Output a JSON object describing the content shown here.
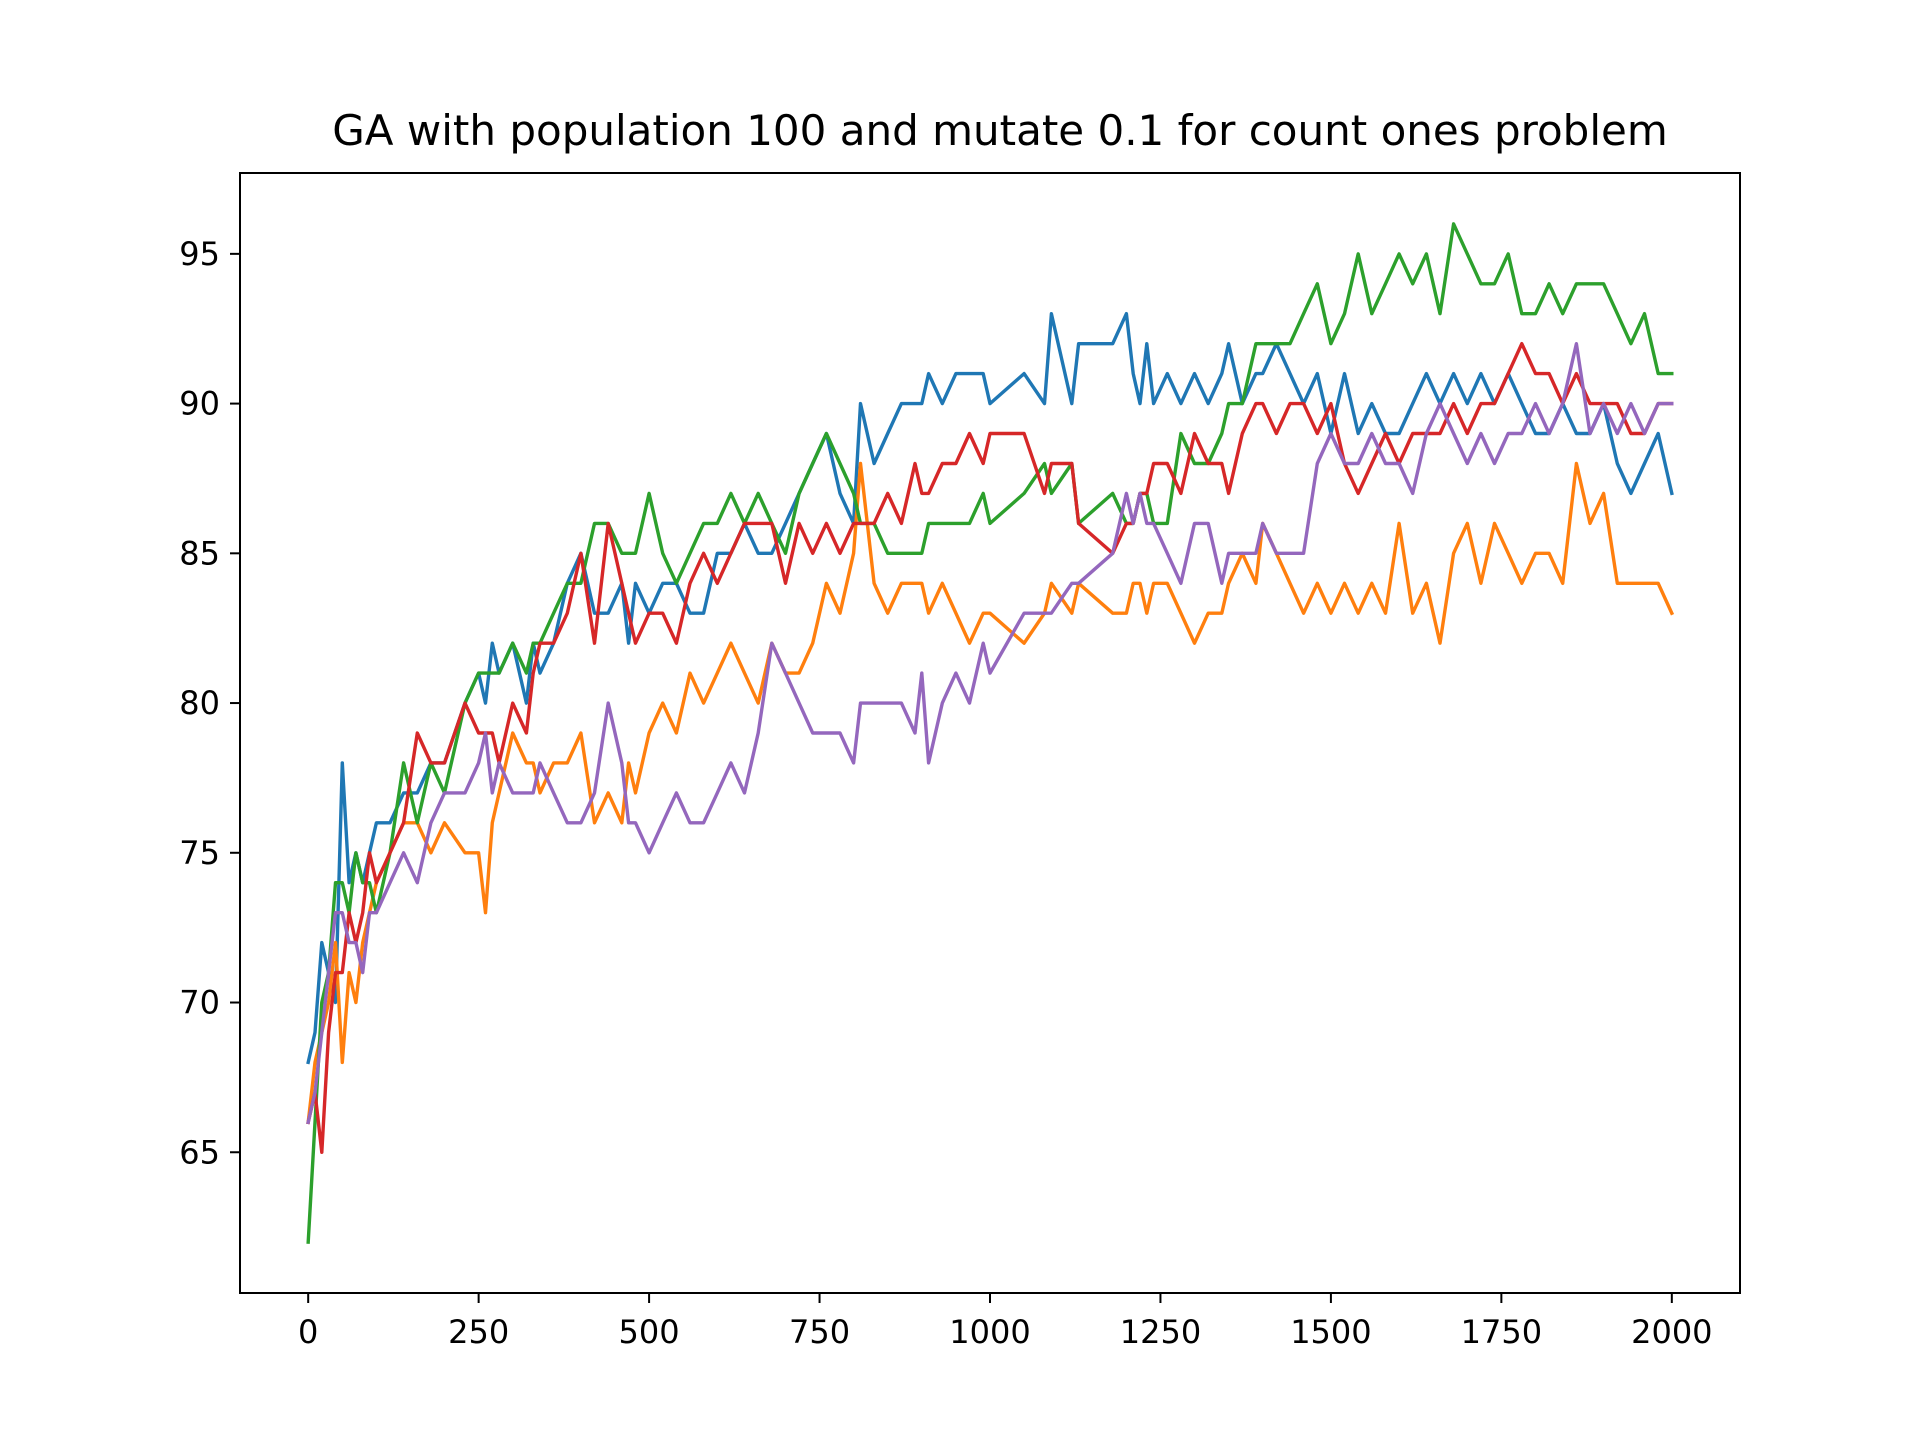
{
  "chart_data": {
    "type": "line",
    "title": "GA with population 100 and mutate 0.1 for count ones problem",
    "xlabel": "",
    "ylabel": "",
    "xlim": [
      -100,
      2100
    ],
    "ylim": [
      60.3,
      97.7
    ],
    "xticks": [
      0,
      250,
      500,
      750,
      1000,
      1250,
      1500,
      1750,
      2000
    ],
    "yticks": [
      65,
      70,
      75,
      80,
      85,
      90,
      95
    ],
    "grid": false,
    "legend": "none",
    "series": [
      {
        "color": "#1f77b4",
        "x": [
          0,
          10,
          20,
          30,
          40,
          50,
          60,
          70,
          80,
          90,
          100,
          120,
          140,
          160,
          180,
          200,
          230,
          250,
          260,
          270,
          280,
          300,
          320,
          330,
          340,
          360,
          380,
          400,
          420,
          440,
          460,
          470,
          480,
          500,
          520,
          540,
          560,
          580,
          600,
          620,
          640,
          660,
          680,
          700,
          720,
          740,
          760,
          780,
          800,
          810,
          830,
          850,
          870,
          890,
          900,
          910,
          930,
          950,
          970,
          990,
          1000,
          1050,
          1080,
          1090,
          1120,
          1130,
          1180,
          1200,
          1210,
          1220,
          1230,
          1240,
          1260,
          1280,
          1300,
          1320,
          1340,
          1350,
          1370,
          1390,
          1400,
          1420,
          1440,
          1460,
          1480,
          1500,
          1520,
          1540,
          1560,
          1580,
          1600,
          1620,
          1640,
          1660,
          1680,
          1700,
          1720,
          1740,
          1760,
          1780,
          1800,
          1820,
          1840,
          1860,
          1880,
          1900,
          1920,
          1940,
          1960,
          1980,
          2000
        ],
        "y": [
          68,
          69,
          72,
          71,
          70,
          78,
          74,
          75,
          74,
          75,
          76,
          76,
          77,
          77,
          78,
          78,
          80,
          81,
          80,
          82,
          81,
          82,
          80,
          82,
          81,
          82,
          84,
          85,
          83,
          83,
          84,
          82,
          84,
          83,
          84,
          84,
          83,
          83,
          85,
          85,
          86,
          85,
          85,
          86,
          87,
          88,
          89,
          87,
          86,
          90,
          88,
          89,
          90,
          90,
          90,
          91,
          90,
          91,
          91,
          91,
          90,
          91,
          90,
          93,
          90,
          92,
          92,
          93,
          91,
          90,
          92,
          90,
          91,
          90,
          91,
          90,
          91,
          92,
          90,
          91,
          91,
          92,
          91,
          90,
          91,
          89,
          91,
          89,
          90,
          89,
          89,
          90,
          91,
          90,
          91,
          90,
          91,
          90,
          91,
          90,
          89,
          89,
          90,
          89,
          89,
          90,
          88,
          87,
          88,
          89,
          87
        ]
      },
      {
        "color": "#ff7f0e",
        "x": [
          0,
          10,
          20,
          30,
          40,
          50,
          60,
          70,
          80,
          90,
          100,
          120,
          140,
          160,
          180,
          200,
          230,
          250,
          260,
          270,
          280,
          300,
          320,
          330,
          340,
          360,
          380,
          400,
          420,
          440,
          460,
          470,
          480,
          500,
          520,
          540,
          560,
          580,
          600,
          620,
          640,
          660,
          680,
          700,
          720,
          740,
          760,
          780,
          800,
          810,
          830,
          850,
          870,
          890,
          900,
          910,
          930,
          950,
          970,
          990,
          1000,
          1050,
          1080,
          1090,
          1120,
          1130,
          1180,
          1200,
          1210,
          1220,
          1230,
          1240,
          1260,
          1280,
          1300,
          1320,
          1340,
          1350,
          1370,
          1390,
          1400,
          1420,
          1440,
          1460,
          1480,
          1500,
          1520,
          1540,
          1560,
          1580,
          1600,
          1620,
          1640,
          1660,
          1680,
          1700,
          1720,
          1740,
          1760,
          1780,
          1800,
          1820,
          1840,
          1860,
          1880,
          1900,
          1920,
          1940,
          1960,
          1980,
          2000
        ],
        "y": [
          66,
          68,
          69,
          70,
          72,
          68,
          71,
          70,
          72,
          73,
          74,
          75,
          76,
          76,
          75,
          76,
          75,
          75,
          73,
          76,
          77,
          79,
          78,
          78,
          77,
          78,
          78,
          79,
          76,
          77,
          76,
          78,
          77,
          79,
          80,
          79,
          81,
          80,
          81,
          82,
          81,
          80,
          82,
          81,
          81,
          82,
          84,
          83,
          85,
          88,
          84,
          83,
          84,
          84,
          84,
          83,
          84,
          83,
          82,
          83,
          83,
          82,
          83,
          84,
          83,
          84,
          83,
          83,
          84,
          84,
          83,
          84,
          84,
          83,
          82,
          83,
          83,
          84,
          85,
          84,
          86,
          85,
          84,
          83,
          84,
          83,
          84,
          83,
          84,
          83,
          86,
          83,
          84,
          82,
          85,
          86,
          84,
          86,
          85,
          84,
          85,
          85,
          84,
          88,
          86,
          87,
          84,
          84,
          84,
          84,
          83
        ]
      },
      {
        "color": "#2ca02c",
        "x": [
          0,
          10,
          20,
          30,
          40,
          50,
          60,
          70,
          80,
          90,
          100,
          120,
          140,
          160,
          180,
          200,
          230,
          250,
          260,
          270,
          280,
          300,
          320,
          330,
          340,
          360,
          380,
          400,
          420,
          440,
          460,
          470,
          480,
          500,
          520,
          540,
          560,
          580,
          600,
          620,
          640,
          660,
          680,
          700,
          720,
          740,
          760,
          780,
          800,
          810,
          830,
          850,
          870,
          890,
          900,
          910,
          930,
          950,
          970,
          990,
          1000,
          1050,
          1080,
          1090,
          1120,
          1130,
          1180,
          1200,
          1210,
          1220,
          1230,
          1240,
          1260,
          1280,
          1300,
          1320,
          1340,
          1350,
          1370,
          1390,
          1400,
          1420,
          1440,
          1460,
          1480,
          1500,
          1520,
          1540,
          1560,
          1580,
          1600,
          1620,
          1640,
          1660,
          1680,
          1700,
          1720,
          1740,
          1760,
          1780,
          1800,
          1820,
          1840,
          1860,
          1880,
          1900,
          1920,
          1940,
          1960,
          1980,
          2000
        ],
        "y": [
          62,
          66,
          70,
          71,
          74,
          74,
          73,
          75,
          74,
          74,
          73,
          75,
          78,
          76,
          78,
          77,
          80,
          81,
          81,
          81,
          81,
          82,
          81,
          82,
          82,
          83,
          84,
          84,
          86,
          86,
          85,
          85,
          85,
          87,
          85,
          84,
          85,
          86,
          86,
          87,
          86,
          87,
          86,
          85,
          87,
          88,
          89,
          88,
          87,
          86,
          86,
          85,
          85,
          85,
          85,
          86,
          86,
          86,
          86,
          87,
          86,
          87,
          88,
          87,
          88,
          86,
          87,
          86,
          86,
          87,
          87,
          86,
          86,
          89,
          88,
          88,
          89,
          90,
          90,
          92,
          92,
          92,
          92,
          93,
          94,
          92,
          93,
          95,
          93,
          94,
          95,
          94,
          95,
          93,
          96,
          95,
          94,
          94,
          95,
          93,
          93,
          94,
          93,
          94,
          94,
          94,
          93,
          92,
          93,
          91,
          91
        ]
      },
      {
        "color": "#d62728",
        "x": [
          0,
          10,
          20,
          30,
          40,
          50,
          60,
          70,
          80,
          90,
          100,
          120,
          140,
          160,
          180,
          200,
          230,
          250,
          260,
          270,
          280,
          300,
          320,
          330,
          340,
          360,
          380,
          400,
          420,
          440,
          460,
          470,
          480,
          500,
          520,
          540,
          560,
          580,
          600,
          620,
          640,
          660,
          680,
          700,
          720,
          740,
          760,
          780,
          800,
          810,
          830,
          850,
          870,
          890,
          900,
          910,
          930,
          950,
          970,
          990,
          1000,
          1050,
          1080,
          1090,
          1120,
          1130,
          1180,
          1200,
          1210,
          1220,
          1230,
          1240,
          1260,
          1280,
          1300,
          1320,
          1340,
          1350,
          1370,
          1390,
          1400,
          1420,
          1440,
          1460,
          1480,
          1500,
          1520,
          1540,
          1560,
          1580,
          1600,
          1620,
          1640,
          1660,
          1680,
          1700,
          1720,
          1740,
          1760,
          1780,
          1800,
          1820,
          1840,
          1860,
          1880,
          1900,
          1920,
          1940,
          1960,
          1980,
          2000
        ],
        "y": [
          66,
          67,
          65,
          69,
          71,
          71,
          73,
          72,
          73,
          75,
          74,
          75,
          76,
          79,
          78,
          78,
          80,
          79,
          79,
          79,
          78,
          80,
          79,
          81,
          82,
          82,
          83,
          85,
          82,
          86,
          84,
          83,
          82,
          83,
          83,
          82,
          84,
          85,
          84,
          85,
          86,
          86,
          86,
          84,
          86,
          85,
          86,
          85,
          86,
          86,
          86,
          87,
          86,
          88,
          87,
          87,
          88,
          88,
          89,
          88,
          89,
          89,
          87,
          88,
          88,
          86,
          85,
          86,
          86,
          87,
          87,
          88,
          88,
          87,
          89,
          88,
          88,
          87,
          89,
          90,
          90,
          89,
          90,
          90,
          89,
          90,
          88,
          87,
          88,
          89,
          88,
          89,
          89,
          89,
          90,
          89,
          90,
          90,
          91,
          92,
          91,
          91,
          90,
          91,
          90,
          90,
          90,
          89,
          89,
          90,
          90
        ]
      },
      {
        "color": "#9467bd",
        "x": [
          0,
          10,
          20,
          30,
          40,
          50,
          60,
          70,
          80,
          90,
          100,
          120,
          140,
          160,
          180,
          200,
          230,
          250,
          260,
          270,
          280,
          300,
          320,
          330,
          340,
          360,
          380,
          400,
          420,
          440,
          460,
          470,
          480,
          500,
          520,
          540,
          560,
          580,
          600,
          620,
          640,
          660,
          680,
          700,
          720,
          740,
          760,
          780,
          800,
          810,
          830,
          850,
          870,
          890,
          900,
          910,
          930,
          950,
          970,
          990,
          1000,
          1050,
          1080,
          1090,
          1120,
          1130,
          1180,
          1200,
          1210,
          1220,
          1230,
          1240,
          1260,
          1280,
          1300,
          1320,
          1340,
          1350,
          1370,
          1390,
          1400,
          1420,
          1440,
          1460,
          1480,
          1500,
          1520,
          1540,
          1560,
          1580,
          1600,
          1620,
          1640,
          1660,
          1680,
          1700,
          1720,
          1740,
          1760,
          1780,
          1800,
          1820,
          1840,
          1860,
          1880,
          1900,
          1920,
          1940,
          1960,
          1980,
          2000
        ],
        "y": [
          66,
          67,
          69,
          71,
          73,
          73,
          72,
          72,
          71,
          73,
          73,
          74,
          75,
          74,
          76,
          77,
          77,
          78,
          79,
          77,
          78,
          77,
          77,
          77,
          78,
          77,
          76,
          76,
          77,
          80,
          78,
          76,
          76,
          75,
          76,
          77,
          76,
          76,
          77,
          78,
          77,
          79,
          82,
          81,
          80,
          79,
          79,
          79,
          78,
          80,
          80,
          80,
          80,
          79,
          81,
          78,
          80,
          81,
          80,
          82,
          81,
          83,
          83,
          83,
          84,
          84,
          85,
          87,
          86,
          87,
          86,
          86,
          85,
          84,
          86,
          86,
          84,
          85,
          85,
          85,
          86,
          85,
          85,
          85,
          88,
          89,
          88,
          88,
          89,
          88,
          88,
          87,
          89,
          90,
          89,
          88,
          89,
          88,
          89,
          89,
          90,
          89,
          90,
          92,
          89,
          90,
          89,
          90,
          89,
          90,
          90
        ]
      }
    ]
  }
}
